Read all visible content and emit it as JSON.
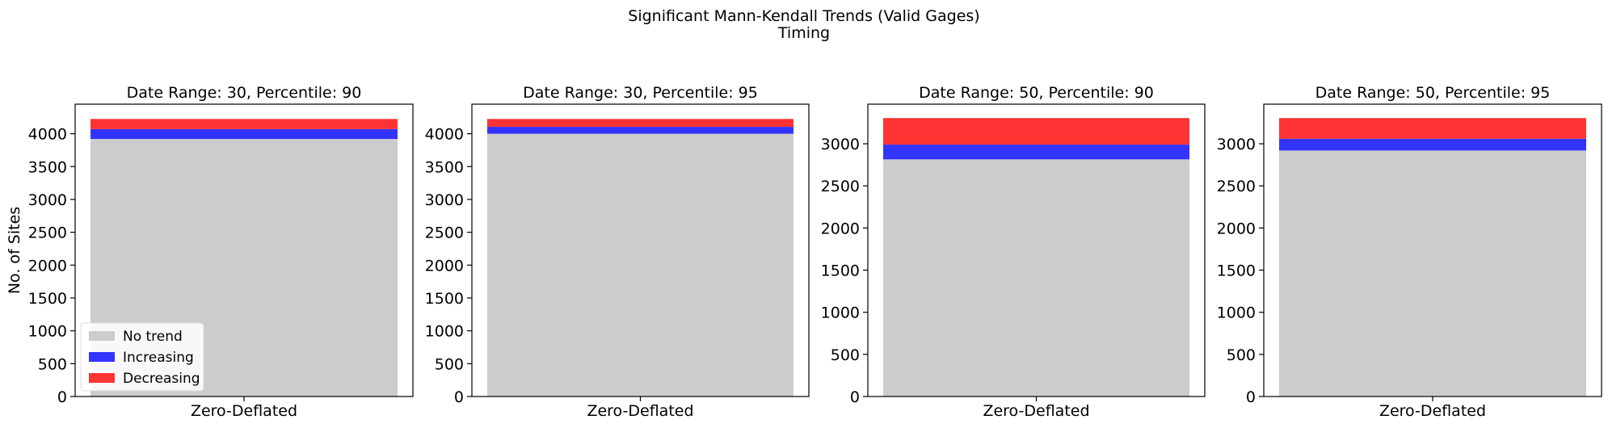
{
  "figure": {
    "title_line1": "Significant Mann-Kendall Trends (Valid Gages)",
    "title_line2": "Timing"
  },
  "colors": {
    "no_trend": "#cccccc",
    "increasing": "#3333ff",
    "decreasing": "#ff3333"
  },
  "chart_data": [
    {
      "type": "bar",
      "stacked": true,
      "title": "Date Range: 30, Percentile: 90",
      "categories": [
        "Zero-Deflated"
      ],
      "ylabel": "No. of Sites",
      "ylim": [
        0,
        4450
      ],
      "yticks": [
        0,
        500,
        1000,
        1500,
        2000,
        2500,
        3000,
        3500,
        4000
      ],
      "legend": "lower-left",
      "series": [
        {
          "name": "No trend",
          "values": [
            3920
          ]
        },
        {
          "name": "Increasing",
          "values": [
            150
          ]
        },
        {
          "name": "Decreasing",
          "values": [
            155
          ]
        }
      ]
    },
    {
      "type": "bar",
      "stacked": true,
      "title": "Date Range: 30, Percentile: 95",
      "categories": [
        "Zero-Deflated"
      ],
      "ylabel": "",
      "ylim": [
        0,
        4450
      ],
      "yticks": [
        0,
        500,
        1000,
        1500,
        2000,
        2500,
        3000,
        3500,
        4000
      ],
      "series": [
        {
          "name": "No trend",
          "values": [
            4000
          ]
        },
        {
          "name": "Increasing",
          "values": [
            105
          ]
        },
        {
          "name": "Decreasing",
          "values": [
            120
          ]
        }
      ]
    },
    {
      "type": "bar",
      "stacked": true,
      "title": "Date Range: 50, Percentile: 90",
      "categories": [
        "Zero-Deflated"
      ],
      "ylabel": "",
      "ylim": [
        0,
        3470
      ],
      "yticks": [
        0,
        500,
        1000,
        1500,
        2000,
        2500,
        3000
      ],
      "series": [
        {
          "name": "No trend",
          "values": [
            2815
          ]
        },
        {
          "name": "Increasing",
          "values": [
            175
          ]
        },
        {
          "name": "Decreasing",
          "values": [
            315
          ]
        }
      ]
    },
    {
      "type": "bar",
      "stacked": true,
      "title": "Date Range: 50, Percentile: 95",
      "categories": [
        "Zero-Deflated"
      ],
      "ylabel": "",
      "ylim": [
        0,
        3470
      ],
      "yticks": [
        0,
        500,
        1000,
        1500,
        2000,
        2500,
        3000
      ],
      "series": [
        {
          "name": "No trend",
          "values": [
            2920
          ]
        },
        {
          "name": "Increasing",
          "values": [
            140
          ]
        },
        {
          "name": "Decreasing",
          "values": [
            245
          ]
        }
      ]
    }
  ]
}
